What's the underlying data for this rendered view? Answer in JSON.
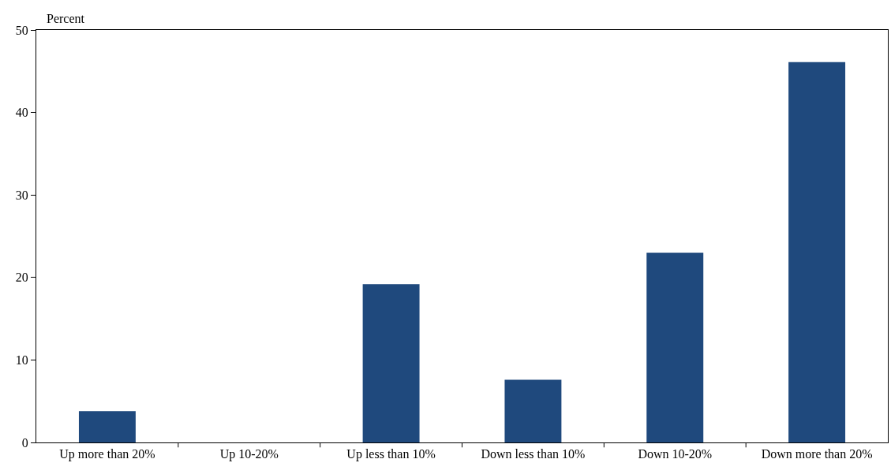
{
  "chart_data": {
    "type": "bar",
    "ylabel": "Percent",
    "categories": [
      "Up more than 20%",
      "Up 10-20%",
      "Up less than 10%",
      "Down less than 10%",
      "Down 10-20%",
      "Down more than 20%"
    ],
    "values": [
      3.8,
      0,
      19.2,
      7.6,
      23.0,
      46.1
    ],
    "color": "#1f497d",
    "ylim": [
      0,
      50
    ],
    "yticks": [
      0,
      10,
      20,
      30,
      40,
      50
    ]
  }
}
